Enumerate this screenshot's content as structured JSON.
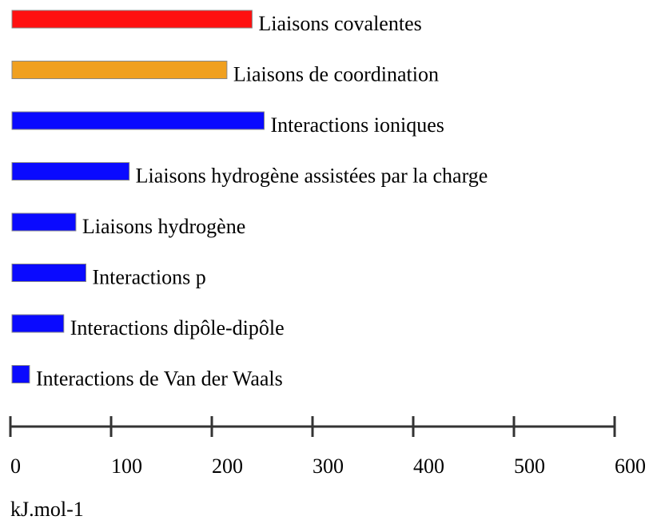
{
  "chart_data": {
    "type": "bar",
    "orientation": "horizontal",
    "categories": [
      "Liaisons covalentes",
      "Liaisons de coordination",
      "Interactions ioniques",
      "Liaisons hydrogène assistées par la charge",
      "Liaisons hydrogène",
      "Interactions p",
      "Interactions dipôle-dipôle",
      "Interactions de Van der Waals"
    ],
    "values": [
      240,
      215,
      252,
      118,
      65,
      75,
      53,
      19
    ],
    "colors": [
      "#ff1010",
      "#f0a020",
      "#0a0aff",
      "#0a0aff",
      "#0a0aff",
      "#0a0aff",
      "#0a0aff",
      "#0a0aff"
    ],
    "xlim": [
      0,
      600
    ],
    "xticks": [
      0,
      100,
      200,
      300,
      400,
      500,
      600
    ],
    "xlabel": "kJ.mol-1"
  }
}
